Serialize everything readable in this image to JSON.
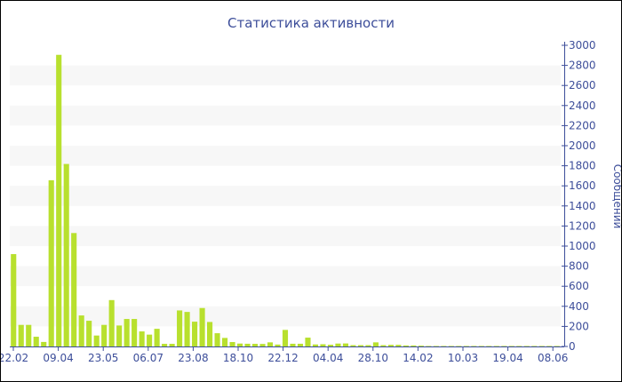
{
  "chart_data": {
    "type": "bar",
    "title": "Статистика активности",
    "ylabel": "Сообщений",
    "xlabel": "",
    "ylim": [
      0,
      3000
    ],
    "yticks": [
      0,
      200,
      400,
      600,
      800,
      1000,
      1200,
      1400,
      1600,
      1800,
      2000,
      2200,
      2400,
      2600,
      2800,
      3000
    ],
    "xtick_labels": [
      "22.02",
      "09.04",
      "23.05",
      "06.07",
      "23.08",
      "18.10",
      "22.12",
      "04.04",
      "28.10",
      "14.02",
      "10.03",
      "19.04",
      "08.06"
    ],
    "grid": "alternating horizontal bands",
    "yaxis_side": "right",
    "bar_color": "#b8e02e",
    "text_color": "#3d4e9a",
    "values": [
      920,
      215,
      215,
      97,
      45,
      1656,
      2905,
      1818,
      1130,
      309,
      256,
      109,
      215,
      462,
      209,
      274,
      274,
      150,
      118,
      176,
      26,
      26,
      359,
      344,
      247,
      383,
      244,
      132,
      85,
      44,
      29,
      27,
      26,
      25,
      41,
      19,
      165,
      27,
      27,
      88,
      20,
      22,
      17,
      29,
      30,
      13,
      13,
      13,
      41,
      13,
      16,
      16,
      10,
      10,
      8,
      5,
      5,
      5,
      5,
      5,
      5,
      5,
      5,
      5,
      5,
      5,
      5,
      5,
      5,
      5,
      5,
      5,
      5
    ]
  }
}
